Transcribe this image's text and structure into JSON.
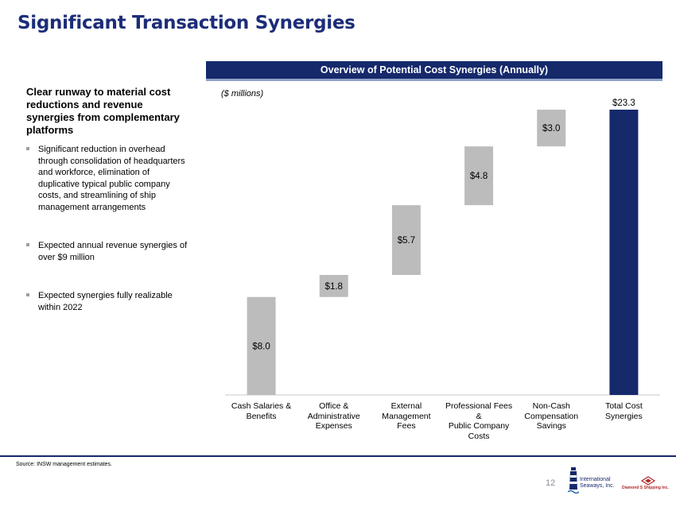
{
  "page": {
    "title": "Significant Transaction Synergies",
    "banner": "Overview of Potential Cost Synergies (Annually)",
    "left_heading": "Clear runway to material cost reductions and revenue synergies from complementary platforms",
    "bullets": [
      "Significant reduction in overhead through consolidation of headquarters and workforce, elimination of duplicative typical public company costs, and streamlining of ship management arrangements",
      "Expected annual revenue synergies of over $9 million",
      "Expected synergies fully realizable within 2022"
    ],
    "source": "Source: INSW management estimates.",
    "page_number": "12",
    "logo_left_text": "International\nSeaways, Inc.",
    "logo_right_text": "Diamond S Shipping Inc."
  },
  "colors": {
    "navy": "#15296b",
    "gray_bar": "#bcbcbc",
    "title": "#1c2d78"
  },
  "chart_data": {
    "type": "bar",
    "subtype": "waterfall",
    "units_label": "($ millions)",
    "categories": [
      "Cash Salaries &\nBenefits",
      "Office &\nAdministrative\nExpenses",
      "External\nManagement\nFees",
      "Professional Fees\n&\nPublic Company\nCosts",
      "Non-Cash\nCompensation\nSavings",
      "Total Cost\nSynergies"
    ],
    "values": [
      8.0,
      1.8,
      5.7,
      4.8,
      3.0,
      23.3
    ],
    "data_labels": [
      "$8.0",
      "$1.8",
      "$5.7",
      "$4.8",
      "$3.0",
      "$23.3"
    ],
    "is_total": [
      false,
      false,
      false,
      false,
      false,
      true
    ],
    "ylim": [
      0,
      23.3
    ],
    "grid": false
  }
}
